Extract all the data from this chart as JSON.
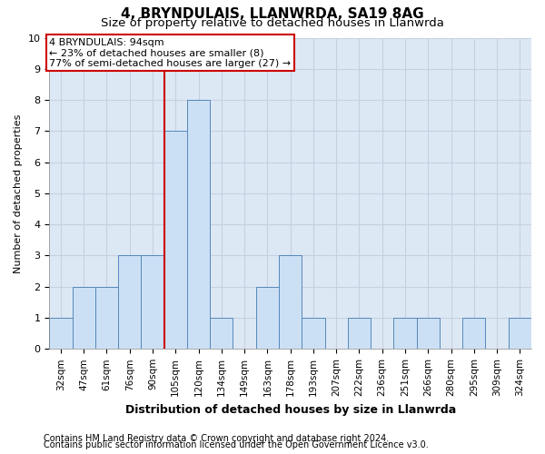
{
  "title1": "4, BRYNDULAIS, LLANWRDA, SA19 8AG",
  "title2": "Size of property relative to detached houses in Llanwrda",
  "xlabel": "Distribution of detached houses by size in Llanwrda",
  "ylabel": "Number of detached properties",
  "categories": [
    "32sqm",
    "47sqm",
    "61sqm",
    "76sqm",
    "90sqm",
    "105sqm",
    "120sqm",
    "134sqm",
    "149sqm",
    "163sqm",
    "178sqm",
    "193sqm",
    "207sqm",
    "222sqm",
    "236sqm",
    "251sqm",
    "266sqm",
    "280sqm",
    "295sqm",
    "309sqm",
    "324sqm"
  ],
  "values": [
    1,
    2,
    2,
    3,
    3,
    7,
    8,
    1,
    0,
    2,
    3,
    1,
    0,
    1,
    0,
    1,
    1,
    0,
    1,
    0,
    1
  ],
  "bar_color": "#cce0f5",
  "bar_edge_color": "#5588bb",
  "vline_x": 4.5,
  "vline_color": "#cc0000",
  "annotation_line1": "4 BRYNDULAIS: 94sqm",
  "annotation_line2": "← 23% of detached houses are smaller (8)",
  "annotation_line3": "77% of semi-detached houses are larger (27) →",
  "annotation_box_color": "#cc0000",
  "ylim": [
    0,
    10
  ],
  "yticks": [
    0,
    1,
    2,
    3,
    4,
    5,
    6,
    7,
    8,
    9,
    10
  ],
  "grid_color": "#c8d0e0",
  "bg_color": "#dde8f5",
  "footer1": "Contains HM Land Registry data © Crown copyright and database right 2024.",
  "footer2": "Contains public sector information licensed under the Open Government Licence v3.0.",
  "title1_fontsize": 11,
  "title2_fontsize": 9.5,
  "xlabel_fontsize": 9,
  "ylabel_fontsize": 8,
  "tick_fontsize": 7.5,
  "footer_fontsize": 7,
  "annotation_fontsize": 8
}
